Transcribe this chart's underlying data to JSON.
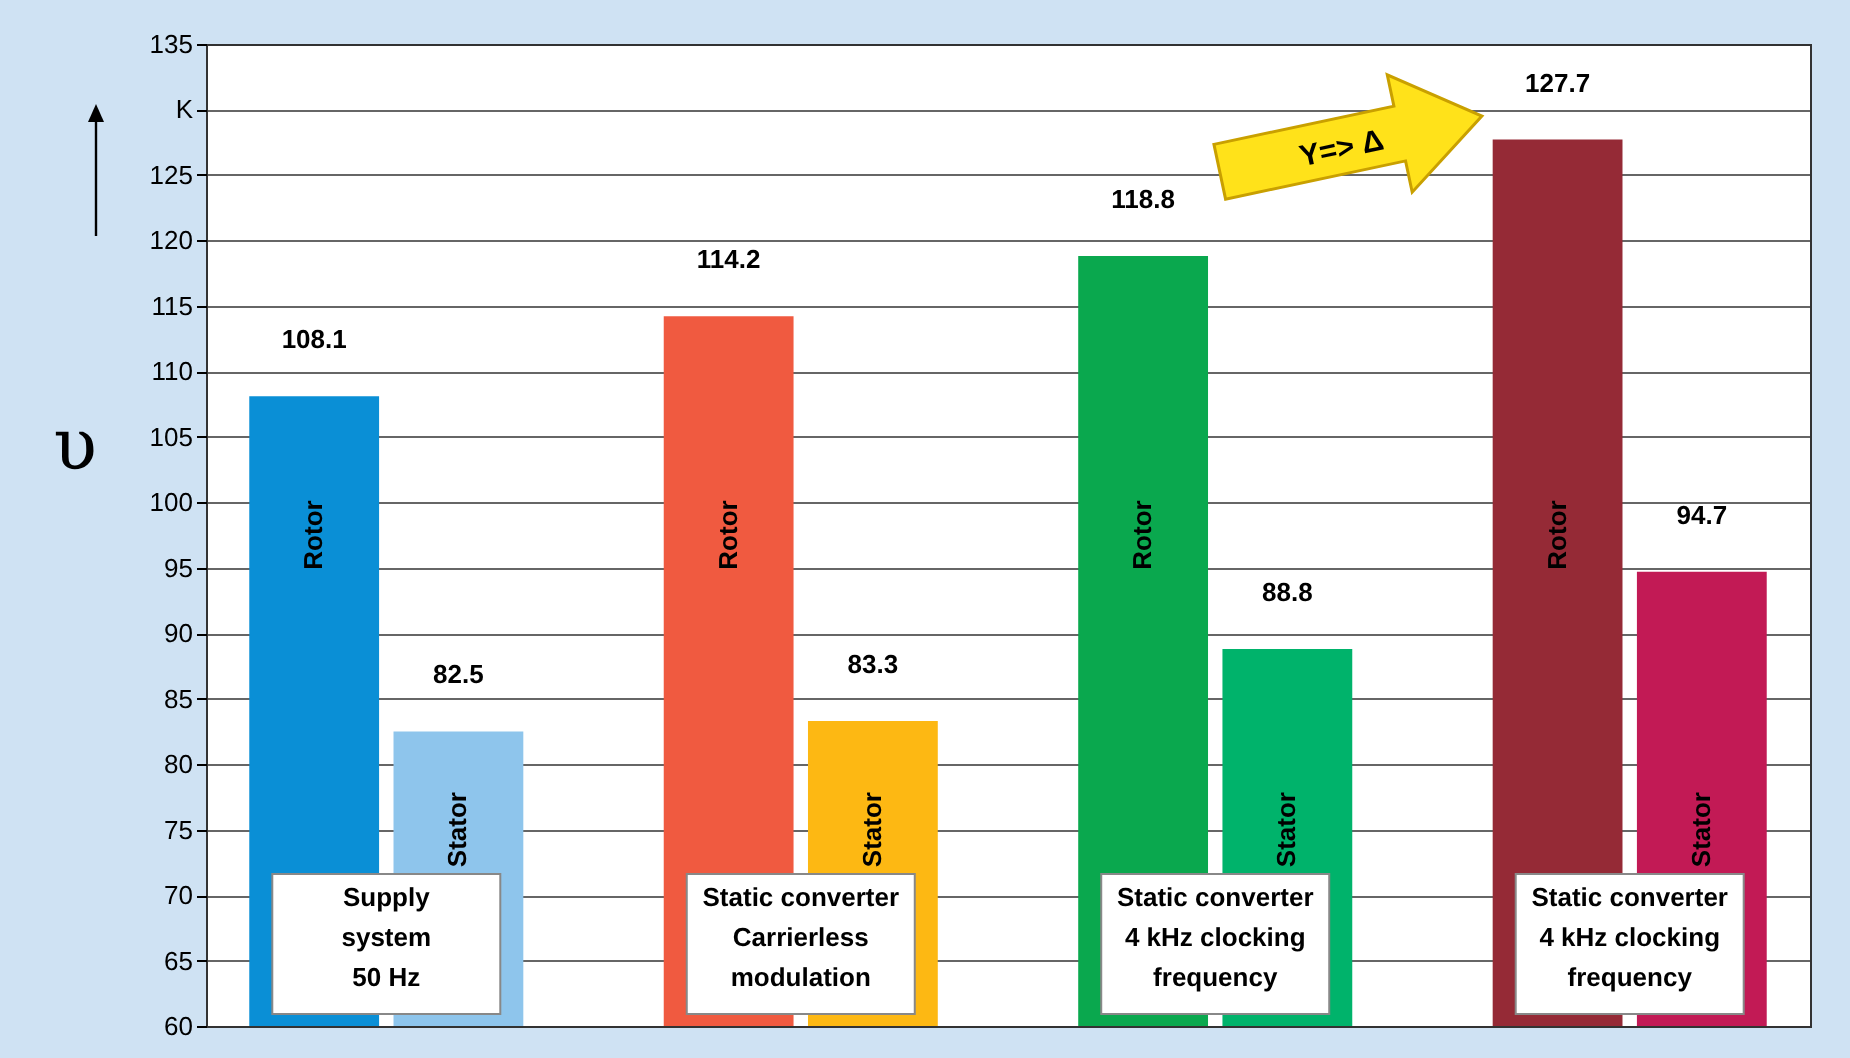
{
  "chart_data": {
    "type": "bar",
    "ylabel": "υ",
    "categories": [
      "Supply\nsystem\n50 Hz",
      "Static converter\nCarrierless\nmodulation",
      "Static converter\n4 kHz clocking\nfrequency",
      "Static converter\n4 kHz clocking\nfrequency"
    ],
    "series": [
      {
        "name": "Rotor",
        "colors": [
          "#0a8fd6",
          "#f05a40",
          "#0aa84e",
          "#952a36"
        ],
        "values": [
          108.1,
          114.2,
          118.8,
          127.7
        ]
      },
      {
        "name": "Stator",
        "colors": [
          "#8ec5ec",
          "#fdb813",
          "#00b36b",
          "#c21a55"
        ],
        "values": [
          82.5,
          83.3,
          88.8,
          94.7
        ]
      }
    ],
    "ylim": [
      60,
      135
    ],
    "yticks": [
      60,
      65,
      70,
      75,
      80,
      85,
      90,
      95,
      100,
      105,
      110,
      115,
      120,
      125,
      {
        "value": 130,
        "label": "K"
      },
      135
    ],
    "grid": "y",
    "data_labels": true,
    "annotations": [
      "Y=> Δ"
    ]
  }
}
